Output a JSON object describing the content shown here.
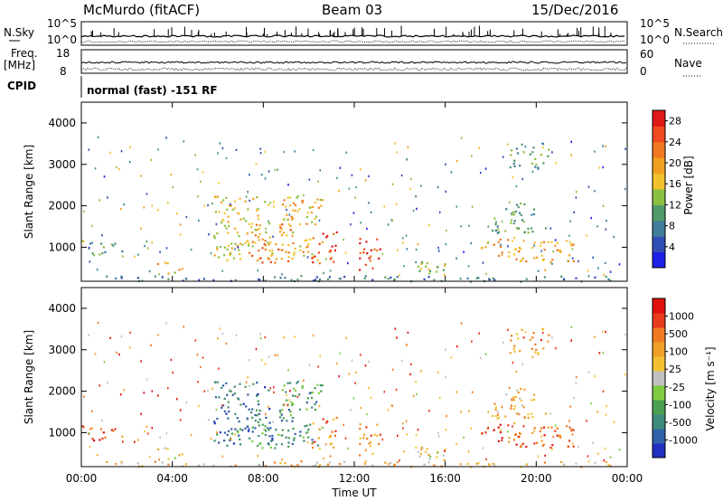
{
  "header": {
    "station": "McMurdo (fitACF)",
    "beam": "Beam 03",
    "date": "15/Dec/2016"
  },
  "status_panel": {
    "left_top_label": "N.Sky",
    "left_mid_label_line1": "Freq.",
    "left_mid_label_line2": "[MHz]",
    "left_bottom_label": "CPID",
    "right_top_label": "N.Search",
    "right_mid_label": "Nave",
    "log_ticks": [
      "10^5",
      "10^0"
    ],
    "freq_ticks": [
      "18",
      "8"
    ],
    "nave_ticks": [
      "60",
      "0"
    ],
    "cpid_text": "normal (fast) -151 RF"
  },
  "time_axis": {
    "label": "Time UT",
    "ticks": [
      "00:00",
      "04:00",
      "08:00",
      "12:00",
      "16:00",
      "20:00",
      "00:00"
    ]
  },
  "chart_data": [
    {
      "type": "heatmap",
      "title": "",
      "xlabel": "Time UT",
      "ylabel": "Slant Range [km]",
      "x_ticks_hours": [
        0,
        4,
        8,
        12,
        16,
        20,
        24
      ],
      "xlim": [
        0,
        24
      ],
      "ylim": [
        180,
        4500
      ],
      "y_ticks": [
        1000,
        2000,
        3000,
        4000
      ],
      "colorbar": {
        "label": "Power [dB]",
        "ticks": [
          "4",
          "8",
          "12",
          "16",
          "20",
          "24",
          "28"
        ],
        "colors": [
          "#1f1fe8",
          "#2f4db5",
          "#3f7d9a",
          "#4f9a6a",
          "#8cc043",
          "#f2c22e",
          "#f0a020",
          "#f07820",
          "#f04a20",
          "#e01818"
        ],
        "range": [
          0,
          30
        ]
      },
      "echo_regions": [
        {
          "t0": 0.0,
          "t1": 24.0,
          "r0": 190,
          "r1": 330,
          "level": 0.25
        },
        {
          "t0": 0.3,
          "t1": 1.8,
          "r0": 800,
          "r1": 1150,
          "level": 0.35
        },
        {
          "t0": 3.3,
          "t1": 4.4,
          "r0": 350,
          "r1": 650,
          "level": 0.6
        },
        {
          "t0": 5.8,
          "t1": 8.4,
          "r0": 700,
          "r1": 2250,
          "level": 0.55
        },
        {
          "t0": 7.2,
          "t1": 9.4,
          "r0": 600,
          "r1": 1600,
          "level": 0.7
        },
        {
          "t0": 8.8,
          "t1": 10.6,
          "r0": 700,
          "r1": 2300,
          "level": 0.6
        },
        {
          "t0": 10.0,
          "t1": 11.2,
          "r0": 600,
          "r1": 1400,
          "level": 0.85
        },
        {
          "t0": 12.2,
          "t1": 13.2,
          "r0": 400,
          "r1": 1300,
          "level": 0.9
        },
        {
          "t0": 14.5,
          "t1": 16.6,
          "r0": 350,
          "r1": 700,
          "level": 0.45
        },
        {
          "t0": 17.5,
          "t1": 21.6,
          "r0": 650,
          "r1": 1250,
          "level": 0.65
        },
        {
          "t0": 18.0,
          "t1": 20.5,
          "r0": 1350,
          "r1": 2100,
          "level": 0.35
        },
        {
          "t0": 18.8,
          "t1": 20.6,
          "r0": 2900,
          "r1": 3550,
          "level": 0.35
        }
      ]
    },
    {
      "type": "heatmap",
      "title": "",
      "xlabel": "Time UT",
      "ylabel": "Slant Range [km]",
      "x_ticks_hours": [
        0,
        4,
        8,
        12,
        16,
        20,
        24
      ],
      "xlim": [
        0,
        24
      ],
      "ylim": [
        180,
        4500
      ],
      "y_ticks": [
        1000,
        2000,
        3000,
        4000
      ],
      "colorbar": {
        "label": "Velocity [m s⁻¹]",
        "ticks": [
          "1000",
          "500",
          "100",
          "25",
          "-25",
          "-100",
          "-500",
          "-1000"
        ],
        "colors": [
          "#2030c0",
          "#3060a8",
          "#3e8a7a",
          "#4aa050",
          "#7fcc40",
          "#c0c0c0",
          "#f2c030",
          "#f0a028",
          "#f07a22",
          "#e83a1c",
          "#e01010"
        ],
        "range": [
          -1000,
          1000
        ]
      },
      "echo_regions": [
        {
          "t0": 0.0,
          "t1": 24.0,
          "r0": 190,
          "r1": 330,
          "level": 0.62
        },
        {
          "t0": 0.3,
          "t1": 1.8,
          "r0": 800,
          "r1": 1150,
          "level": 0.85
        },
        {
          "t0": 3.3,
          "t1": 4.4,
          "r0": 350,
          "r1": 650,
          "level": 0.55
        },
        {
          "t0": 5.8,
          "t1": 8.4,
          "r0": 700,
          "r1": 2250,
          "level": 0.2
        },
        {
          "t0": 7.2,
          "t1": 9.4,
          "r0": 600,
          "r1": 1600,
          "level": 0.25
        },
        {
          "t0": 8.8,
          "t1": 10.6,
          "r0": 700,
          "r1": 2300,
          "level": 0.3
        },
        {
          "t0": 10.0,
          "t1": 11.2,
          "r0": 600,
          "r1": 1400,
          "level": 0.7
        },
        {
          "t0": 12.2,
          "t1": 13.2,
          "r0": 400,
          "r1": 1300,
          "level": 0.72
        },
        {
          "t0": 14.5,
          "t1": 16.6,
          "r0": 350,
          "r1": 700,
          "level": 0.55
        },
        {
          "t0": 17.5,
          "t1": 21.6,
          "r0": 650,
          "r1": 1250,
          "level": 0.82
        },
        {
          "t0": 18.0,
          "t1": 20.5,
          "r0": 1350,
          "r1": 2100,
          "level": 0.62
        },
        {
          "t0": 18.8,
          "t1": 20.6,
          "r0": 2900,
          "r1": 3550,
          "level": 0.7
        }
      ]
    }
  ]
}
